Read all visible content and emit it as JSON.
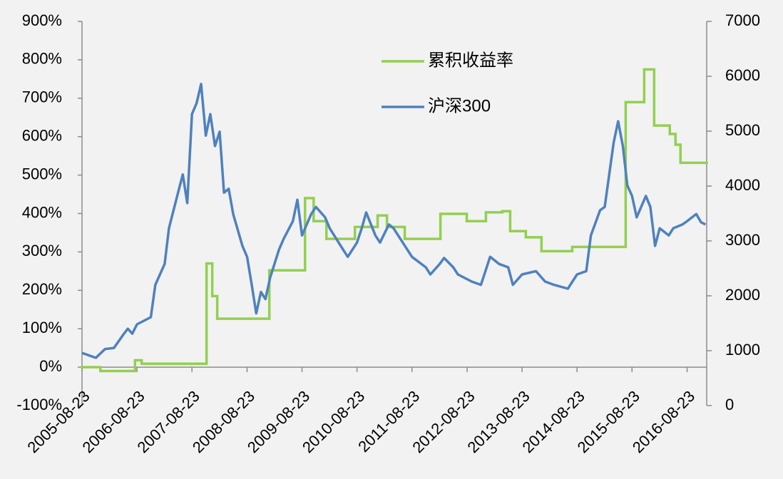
{
  "chart_data": {
    "type": "line",
    "xlim": [
      "2005-08-23",
      "2016-12-31"
    ],
    "xticks": [
      "2005-08-23",
      "2006-08-23",
      "2007-08-23",
      "2008-08-23",
      "2009-08-23",
      "2010-08-23",
      "2011-08-23",
      "2012-08-23",
      "2013-08-23",
      "2014-08-23",
      "2015-08-23",
      "2016-08-23"
    ],
    "ylim": [
      -100,
      900
    ],
    "yticks": [
      {
        "value": -100,
        "label": "-100%"
      },
      {
        "value": 0,
        "label": "0%"
      },
      {
        "value": 100,
        "label": "100%"
      },
      {
        "value": 200,
        "label": "200%"
      },
      {
        "value": 300,
        "label": "300%"
      },
      {
        "value": 400,
        "label": "400%"
      },
      {
        "value": 500,
        "label": "500%"
      },
      {
        "value": 600,
        "label": "600%"
      },
      {
        "value": 700,
        "label": "700%"
      },
      {
        "value": 800,
        "label": "800%"
      },
      {
        "value": 900,
        "label": "900%"
      }
    ],
    "y2lim": [
      0,
      7000
    ],
    "y2ticks": [
      0,
      1000,
      2000,
      3000,
      4000,
      5000,
      6000,
      7000
    ],
    "legend": "top-center",
    "series": [
      {
        "name": "累积收益率",
        "color": "#92d050",
        "drawstyle": "steps-post",
        "x": [
          "2005-08-23",
          "2005-12-23",
          "2006-08-10",
          "2006-09-23",
          "2007-11-28",
          "2008-01-05",
          "2008-02-07",
          "2009-01-18",
          "2009-09-12",
          "2009-11-08",
          "2010-02-01",
          "2010-08-09",
          "2011-01-07",
          "2011-03-10",
          "2011-07-06",
          "2012-02-28",
          "2012-08-21",
          "2012-12-26",
          "2013-04-14",
          "2013-06-05",
          "2013-09-17",
          "2013-12-30",
          "2014-07-22",
          "2015-07-12",
          "2015-11-12",
          "2016-01-17",
          "2016-04-30",
          "2016-06-07",
          "2016-07-10"
        ],
        "values": [
          0,
          -10,
          18,
          9,
          270,
          185,
          126,
          252,
          440,
          380,
          334,
          365,
          395,
          365,
          334,
          399,
          380,
          403,
          406,
          354,
          338,
          302,
          313,
          690,
          775,
          629,
          607,
          579,
          532
        ]
      },
      {
        "name": "沪深300",
        "color": "#4f81bd",
        "axis": "y2",
        "x": [
          "2005-08-23",
          "2005-10-23",
          "2005-11-23",
          "2006-01-23",
          "2006-03-23",
          "2006-05-23",
          "2006-06-23",
          "2006-07-23",
          "2006-08-23",
          "2006-11-23",
          "2006-12-23",
          "2007-02-23",
          "2007-03-23",
          "2007-05-23",
          "2007-06-23",
          "2007-07-23",
          "2007-08-23",
          "2007-09-23",
          "2007-10-23",
          "2007-11-23",
          "2007-12-23",
          "2008-01-23",
          "2008-02-23",
          "2008-03-23",
          "2008-04-23",
          "2008-05-23",
          "2008-07-23",
          "2008-08-23",
          "2008-09-23",
          "2008-10-23",
          "2008-11-23",
          "2008-12-23",
          "2009-01-23",
          "2009-03-23",
          "2009-04-23",
          "2009-06-23",
          "2009-07-23",
          "2009-08-23",
          "2009-10-23",
          "2009-11-23",
          "2010-01-23",
          "2010-02-23",
          "2010-05-23",
          "2010-06-23",
          "2010-08-23",
          "2010-09-23",
          "2010-10-23",
          "2010-12-23",
          "2011-01-23",
          "2011-03-23",
          "2011-04-23",
          "2011-06-23",
          "2011-08-23",
          "2011-11-23",
          "2011-12-23",
          "2012-02-23",
          "2012-03-23",
          "2012-05-23",
          "2012-06-23",
          "2012-09-23",
          "2012-11-23",
          "2013-01-23",
          "2013-03-23",
          "2013-05-23",
          "2013-06-23",
          "2013-08-23",
          "2013-11-23",
          "2014-01-23",
          "2014-03-23",
          "2014-06-23",
          "2014-08-23",
          "2014-10-23",
          "2014-11-23",
          "2015-01-23",
          "2015-02-23",
          "2015-04-23",
          "2015-05-23",
          "2015-06-23",
          "2015-07-23",
          "2015-08-23",
          "2015-09-23",
          "2015-11-23",
          "2015-12-23",
          "2016-01-23",
          "2016-02-23",
          "2016-04-23",
          "2016-05-23",
          "2016-07-23",
          "2016-08-23",
          "2016-10-23",
          "2016-11-23",
          "2016-12-23"
        ],
        "values": [
          960,
          900,
          870,
          1030,
          1050,
          1290,
          1400,
          1310,
          1480,
          1610,
          2200,
          2580,
          3230,
          3880,
          4210,
          3690,
          5310,
          5510,
          5860,
          4920,
          5310,
          4730,
          4990,
          3880,
          3950,
          3490,
          2910,
          2710,
          2200,
          1680,
          2070,
          1940,
          2330,
          2840,
          3040,
          3360,
          3750,
          3100,
          3490,
          3620,
          3430,
          3230,
          2840,
          2710,
          2970,
          3230,
          3520,
          3100,
          2970,
          3300,
          3230,
          2970,
          2710,
          2520,
          2390,
          2580,
          2690,
          2520,
          2390,
          2260,
          2200,
          2710,
          2580,
          2520,
          2200,
          2390,
          2450,
          2260,
          2200,
          2130,
          2390,
          2450,
          3100,
          3560,
          3620,
          4790,
          5180,
          4730,
          4010,
          3820,
          3430,
          3820,
          3620,
          2910,
          3230,
          3100,
          3230,
          3300,
          3360,
          3490,
          3340,
          3300
        ]
      }
    ]
  }
}
